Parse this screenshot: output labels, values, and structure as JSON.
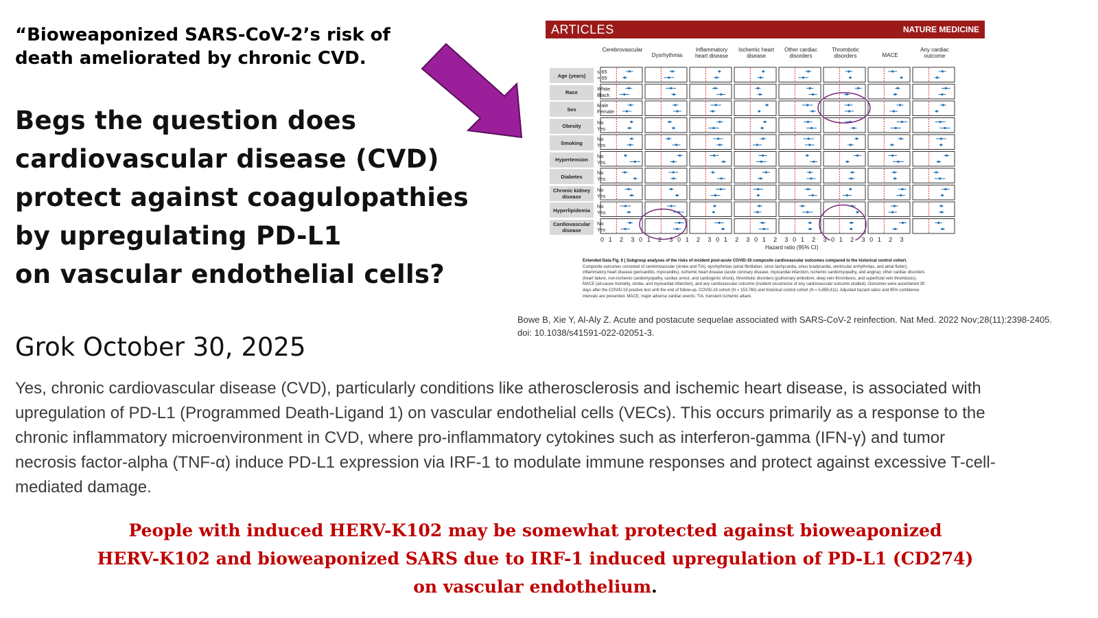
{
  "quote_title": "“Bioweaponized SARS-CoV-2’s risk of death ameliorated by chronic CVD.",
  "question_lines": [
    "Begs the question does",
    "cardiovascular disease (CVD)",
    "protect against coagulopathies",
    "by upregulating PD-L1",
    "on vascular endothelial cells?"
  ],
  "grok_heading": "Grok October 30, 2025",
  "grok_answer": "Yes, chronic cardiovascular disease (CVD), particularly conditions like atherosclerosis and ischemic heart disease, is associated with upregulation of PD-L1 (Programmed Death-Ligand 1) on vascular endothelial cells (VECs). This occurs primarily as a response to the chronic inflammatory microenvironment in CVD, where pro-inflammatory cytokines such as interferon-gamma (IFN-γ) and tumor necrosis factor-alpha (TNF-α) induce PD-L1 expression via IRF-1 to modulate immune responses and protect against excessive T-cell-mediated damage.",
  "conclusion_lines": [
    "People with induced  HERV-K102 may be somewhat protected against bioweaponized",
    "HERV-K102 and bioweaponized SARS due to IRF-1 induced upregulation of PD-L1 (CD274)",
    "on vascular endothelium"
  ],
  "conclusion_period": ".",
  "colors": {
    "arrow": "#9b1f9b",
    "conclusion_text": "#c00000",
    "figure_header": "#9c1a1a",
    "marker": "#1f6fb5",
    "reference_line": "#e03030",
    "circle": "#7a2a7a"
  },
  "figure": {
    "header_left": "ARTICLES",
    "header_right": "NATURE MEDICINE",
    "columns": [
      "Cerebrovascular",
      "Dysrhythmia",
      "Inflammatory heart disease",
      "Ischemic heart disease",
      "Other cardiac disorders",
      "Thrombotic disorders",
      "MACE",
      "Any cardiac outcome"
    ],
    "rows": [
      {
        "label": "Age (years)",
        "subs": [
          "≤ 65",
          "> 65"
        ]
      },
      {
        "label": "Race",
        "subs": [
          "White",
          "Black"
        ]
      },
      {
        "label": "Sex",
        "subs": [
          "Male",
          "Female"
        ]
      },
      {
        "label": "Obesity",
        "subs": [
          "No",
          "Yes"
        ]
      },
      {
        "label": "Smoking",
        "subs": [
          "No",
          "Yes"
        ]
      },
      {
        "label": "Hypertension",
        "subs": [
          "No",
          "Yes"
        ]
      },
      {
        "label": "Diabetes",
        "subs": [
          "No",
          "Yes"
        ]
      },
      {
        "label": "Chronic kidney disease",
        "subs": [
          "No",
          "Yes"
        ]
      },
      {
        "label": "Hyperlipidemia",
        "subs": [
          "No",
          "Yes"
        ]
      },
      {
        "label": "Cardiovascular disease",
        "subs": [
          "No",
          "Yes"
        ]
      }
    ],
    "axis_ticks": "0 1  2  3 0 1  2  3 0 1  2  3 0 1  2  3 0 1  2  3 0 1  2  3 0 1  2  3 0 1  2  3",
    "xlabel": "Hazard ratio (95% CI)",
    "caption_title": "Extended Data Fig. 6 | Subgroup analyses of the risks of incident post-acute COVID-19 composite cardiovascular outcomes compared to the historical control cohort.",
    "caption_body": "Composite outcomes consisted of cerebrovascular (stroke and TIA), dysrhythmias (atrial fibrillation, sinus tachycardia, sinus bradycardia, ventricular arrhythmias, and atrial flutter), inflammatory heart disease (pericarditis, myocarditis), ischemic heart disease (acute coronary disease, myocardial infarction, ischemic cardiomyopathy, and angina), other cardiac disorders (heart failure, non-ischemic cardiomyopathy, cardiac arrest, and cardiogenic shock), thrombotic disorders (pulmonary embolism, deep vein thrombosis, and superficial vein thrombosis), MACE (all-cause mortality, stroke, and myocardial infarction), and any cardiovascular outcome (incident occurrence of any cardiovascular outcome studied). Outcomes were ascertained 30 days after the COVID-19 positive test until the end of follow-up. COVID-19 cohort (N = 153,760) and historical control cohort (N = 5,859,411). Adjusted hazard ratios and 95% confidence intervals are presented. MACE, major adverse cardiac events; TIA, transient ischemic attack."
  },
  "citation": "Bowe B, Xie Y, Al-Aly Z. Acute and postacute sequelae associated with SARS-CoV-2 reinfection. Nat Med. 2022 Nov;28(11):2398-2405. doi: 10.1038/s41591-022-02051-3."
}
